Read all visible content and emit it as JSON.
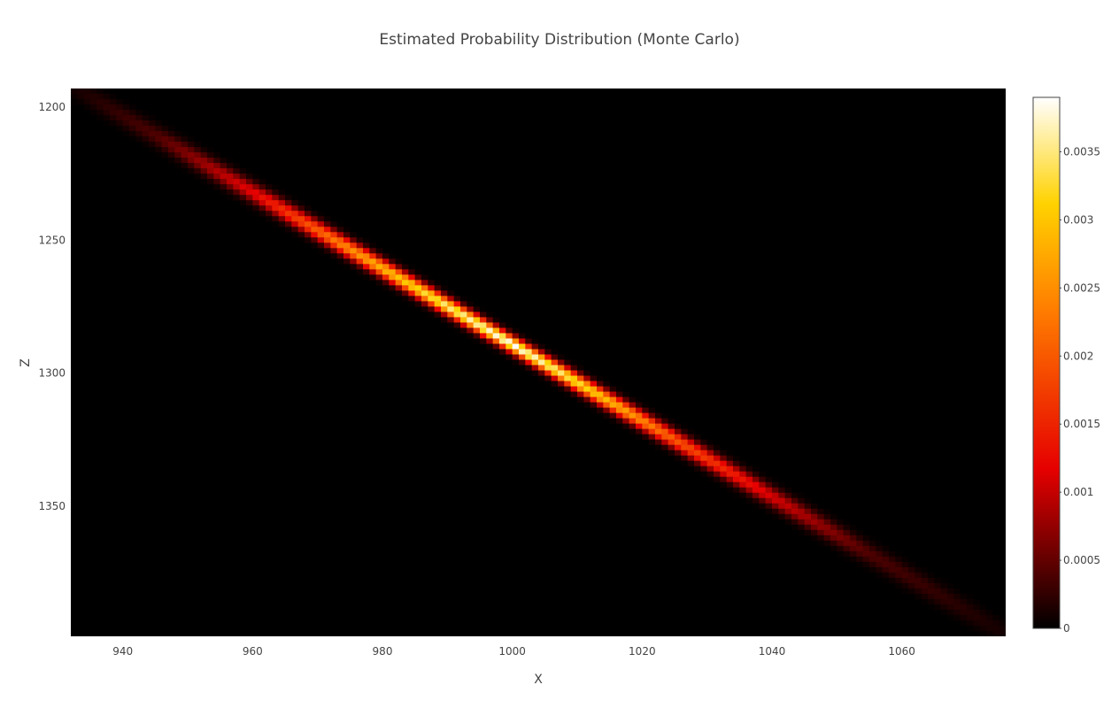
{
  "chart_data": {
    "type": "heatmap",
    "title": "Estimated Probability Distribution (Monte Carlo)",
    "xlabel": "X",
    "ylabel": "Z",
    "xlim": [
      932,
      1076
    ],
    "ylim": [
      1193,
      1399
    ],
    "y_reversed": true,
    "x_ticks": [
      940,
      960,
      980,
      1000,
      1020,
      1040,
      1060
    ],
    "y_ticks": [
      1200,
      1250,
      1300,
      1350
    ],
    "background": "#000000",
    "band": {
      "x_start": 932,
      "z_start": 1192,
      "x_end": 1076,
      "z_end": 1398,
      "peak_x": 999,
      "peak_value": 0.0039,
      "bins_x": 144,
      "bins_z": 103,
      "color_profile": [
        {
          "x": 932,
          "value": 0.0001
        },
        {
          "x": 945,
          "value": 0.0004
        },
        {
          "x": 960,
          "value": 0.0012
        },
        {
          "x": 975,
          "value": 0.0025
        },
        {
          "x": 990,
          "value": 0.0035
        },
        {
          "x": 1000,
          "value": 0.0039
        },
        {
          "x": 1010,
          "value": 0.0033
        },
        {
          "x": 1025,
          "value": 0.002
        },
        {
          "x": 1040,
          "value": 0.0011
        },
        {
          "x": 1055,
          "value": 0.0004
        },
        {
          "x": 1076,
          "value": 0.0001
        }
      ]
    },
    "colorbar": {
      "min": 0,
      "max": 0.0039,
      "ticks": [
        0,
        0.0005,
        0.001,
        0.0015,
        0.002,
        0.0025,
        0.003,
        0.0035
      ],
      "tick_labels": [
        "0",
        "0.0005",
        "0.001",
        "0.0015",
        "0.002",
        "0.0025",
        "0.003",
        "0.0035"
      ],
      "colorscale": [
        [
          0,
          "#000000"
        ],
        [
          0.3,
          "#e60000"
        ],
        [
          0.6,
          "#ff7d00"
        ],
        [
          0.8,
          "#ffd200"
        ],
        [
          1,
          "#ffffff"
        ]
      ]
    },
    "legend": "none",
    "grid": false
  }
}
